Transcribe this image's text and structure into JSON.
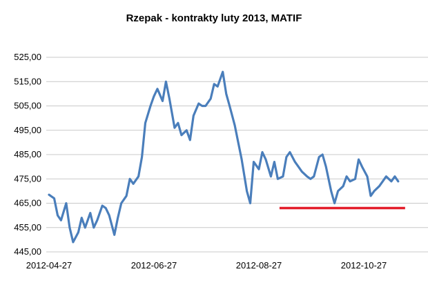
{
  "chart_data": {
    "type": "line",
    "title": "Rzepak - kontrakty luty 2013, MATIF",
    "xlabel": "",
    "ylabel": "",
    "ylim": [
      445,
      525
    ],
    "y_ticks": [
      "445,00",
      "455,00",
      "465,00",
      "475,00",
      "485,00",
      "495,00",
      "505,00",
      "515,00",
      "525,00"
    ],
    "y_tick_values": [
      445,
      455,
      465,
      475,
      485,
      495,
      505,
      515,
      525
    ],
    "x_ticks": [
      "2012-04-27",
      "2012-06-27",
      "2012-08-27",
      "2012-10-27"
    ],
    "grid": "horizontal",
    "series": [
      {
        "color": "#4a7ebb",
        "x": [
          "2012-04-27",
          "2012-04-30",
          "2012-05-02",
          "2012-05-04",
          "2012-05-07",
          "2012-05-09",
          "2012-05-11",
          "2012-05-14",
          "2012-05-16",
          "2012-05-18",
          "2012-05-21",
          "2012-05-23",
          "2012-05-25",
          "2012-05-28",
          "2012-05-30",
          "2012-06-01",
          "2012-06-04",
          "2012-06-06",
          "2012-06-08",
          "2012-06-11",
          "2012-06-13",
          "2012-06-15",
          "2012-06-18",
          "2012-06-20",
          "2012-06-22",
          "2012-06-25",
          "2012-06-27",
          "2012-06-29",
          "2012-07-02",
          "2012-07-04",
          "2012-07-06",
          "2012-07-09",
          "2012-07-11",
          "2012-07-13",
          "2012-07-16",
          "2012-07-18",
          "2012-07-20",
          "2012-07-23",
          "2012-07-25",
          "2012-07-27",
          "2012-07-30",
          "2012-08-01",
          "2012-08-03",
          "2012-08-06",
          "2012-08-08",
          "2012-08-10",
          "2012-08-13",
          "2012-08-15",
          "2012-08-17",
          "2012-08-20",
          "2012-08-22",
          "2012-08-24",
          "2012-08-27",
          "2012-08-29",
          "2012-08-31",
          "2012-09-03",
          "2012-09-05",
          "2012-09-07",
          "2012-09-10",
          "2012-09-12",
          "2012-09-14",
          "2012-09-17",
          "2012-09-19",
          "2012-09-21",
          "2012-09-24",
          "2012-09-26",
          "2012-09-28",
          "2012-10-01",
          "2012-10-03",
          "2012-10-05",
          "2012-10-08",
          "2012-10-10",
          "2012-10-12",
          "2012-10-15",
          "2012-10-17",
          "2012-10-19",
          "2012-10-22",
          "2012-10-24",
          "2012-10-26",
          "2012-10-29",
          "2012-10-31",
          "2012-11-02",
          "2012-11-05",
          "2012-11-07",
          "2012-11-09",
          "2012-11-12",
          "2012-11-14",
          "2012-11-16"
        ],
        "values": [
          468.5,
          467,
          460,
          458,
          465,
          455,
          449,
          453,
          459,
          455,
          461,
          455,
          458,
          464,
          463,
          460,
          452,
          459,
          465,
          468,
          475,
          473,
          476,
          484,
          498,
          505,
          509,
          512,
          507,
          515,
          508,
          496,
          498,
          493,
          495,
          491,
          501,
          506,
          505,
          505,
          508,
          514,
          513,
          519,
          510,
          505,
          497,
          490,
          483,
          470,
          465,
          482,
          479,
          486,
          483,
          476,
          482,
          475,
          476,
          484,
          486,
          482,
          480,
          478,
          476,
          475,
          476,
          484,
          485,
          480,
          470,
          465,
          470,
          472,
          476,
          474,
          475,
          483,
          480,
          476,
          468,
          470,
          472,
          474,
          476,
          474,
          476,
          474
        ]
      }
    ],
    "annotation_line": {
      "color": "#e31d2a",
      "value": 463,
      "x_from": "2012-09-08",
      "x_to": "2012-11-16"
    }
  }
}
